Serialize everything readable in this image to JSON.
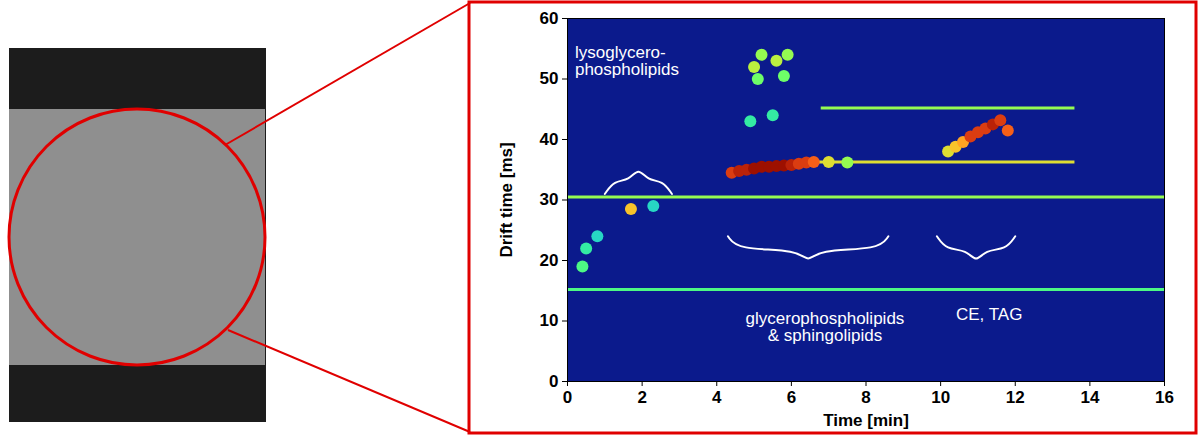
{
  "chart_data": {
    "type": "heatmap",
    "x_label": "Time [min]",
    "y_label": "Drift time [ms]",
    "xlim": [
      0,
      16
    ],
    "ylim": [
      0,
      60
    ],
    "xticks": [
      0,
      2,
      4,
      6,
      8,
      10,
      12,
      14,
      16
    ],
    "yticks": [
      0,
      10,
      20,
      30,
      40,
      50,
      60
    ],
    "zlim": [
      0,
      1
    ],
    "spots": {
      "x": [
        0.4,
        0.5,
        0.8,
        1.7,
        2.3,
        4.4,
        4.6,
        4.8,
        5.0,
        5.2,
        5.4,
        5.6,
        5.8,
        6.0,
        6.2,
        6.4,
        6.6,
        7.0,
        7.5,
        5.0,
        5.2,
        5.6,
        5.9,
        5.1,
        5.8,
        4.9,
        5.5,
        10.2,
        10.4,
        10.6,
        10.8,
        11.0,
        11.2,
        11.4,
        11.6,
        11.8
      ],
      "y": [
        19,
        22,
        24,
        28.5,
        29,
        34.5,
        34.8,
        35,
        35.2,
        35.5,
        35.5,
        35.6,
        35.7,
        35.8,
        36,
        36.2,
        36.3,
        36.3,
        36.2,
        52,
        54,
        53,
        54,
        50,
        50.5,
        43,
        44,
        38,
        38.8,
        39.6,
        40.5,
        41.2,
        41.8,
        42.5,
        43.2,
        41.5
      ],
      "values": [
        0.4,
        0.35,
        0.3,
        0.65,
        0.3,
        0.85,
        0.9,
        0.9,
        0.95,
        0.95,
        0.95,
        0.95,
        0.95,
        0.9,
        0.85,
        0.85,
        0.8,
        0.6,
        0.5,
        0.55,
        0.5,
        0.55,
        0.5,
        0.45,
        0.45,
        0.35,
        0.35,
        0.6,
        0.65,
        0.7,
        0.85,
        0.85,
        0.85,
        0.9,
        0.85,
        0.8
      ]
    },
    "bands": [
      {
        "y": 30.5,
        "x": [
          0,
          16
        ],
        "value": 0.5
      },
      {
        "y": 15.2,
        "x": [
          0,
          16
        ],
        "value": 0.4
      },
      {
        "y": 36.3,
        "x": [
          6.5,
          13.6
        ],
        "value": 0.6
      },
      {
        "y": 45.2,
        "x": [
          6.8,
          13.6
        ],
        "value": 0.5
      }
    ],
    "annotations": [
      {
        "text": "lysoglycero-\nphospholipids",
        "x": 0.2,
        "y": 53,
        "bracket": [
          1.0,
          2.8,
          31
        ]
      },
      {
        "text": "glycerophospholipids\n& sphingolipids",
        "x": 6.9,
        "y": 9,
        "bracket": [
          4.3,
          8.6,
          24
        ]
      },
      {
        "text": "CE, TAG",
        "x": 11.3,
        "y": 11,
        "bracket": [
          9.9,
          12.0,
          24
        ]
      }
    ]
  }
}
